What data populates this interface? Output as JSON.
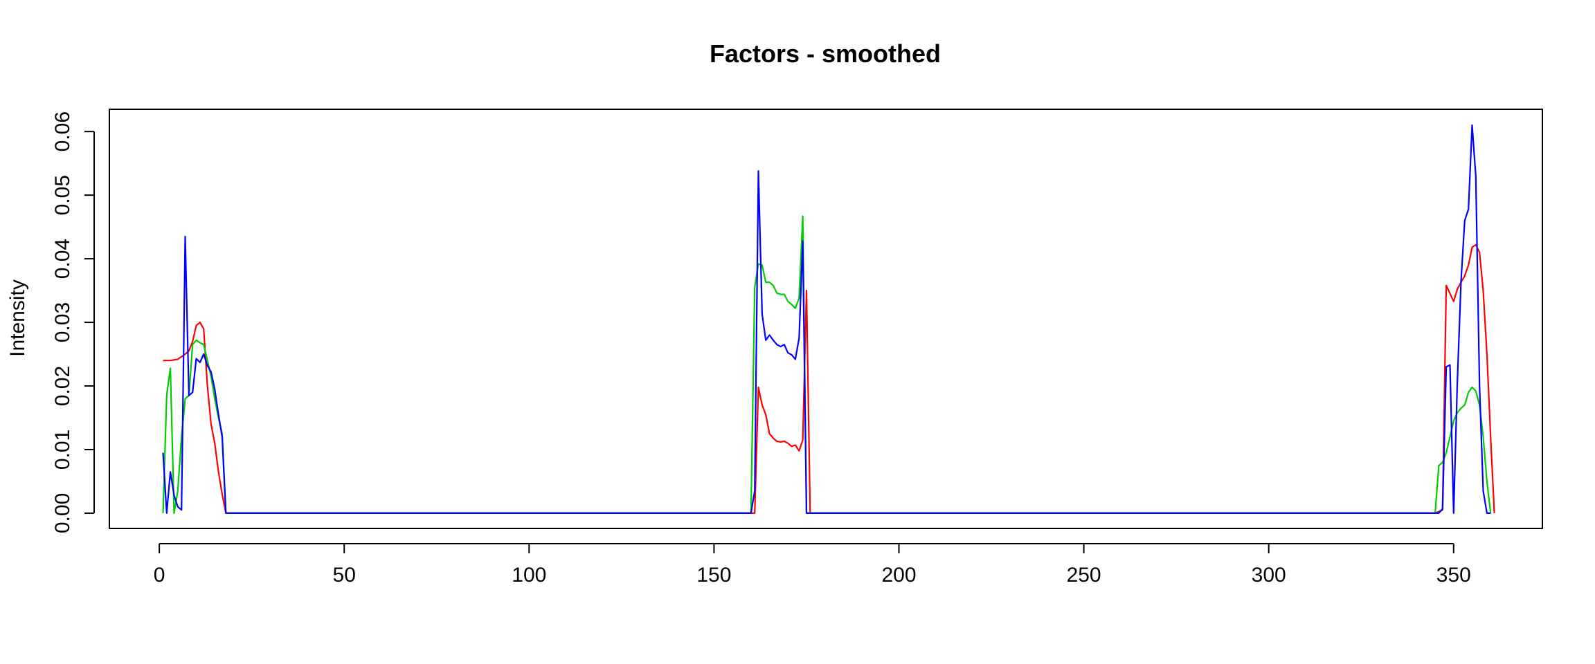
{
  "chart_data": {
    "type": "line",
    "title": "Factors - smoothed",
    "xlabel": "",
    "ylabel": "Intensity",
    "xlim": [
      -13.5,
      374
    ],
    "ylim": [
      -0.0024,
      0.0635
    ],
    "x_ticks": [
      0,
      50,
      100,
      150,
      200,
      250,
      300,
      350
    ],
    "x_tick_labels": [
      "0",
      "50",
      "100",
      "150",
      "200",
      "250",
      "300",
      "350"
    ],
    "y_ticks": [
      0.0,
      0.01,
      0.02,
      0.03,
      0.04,
      0.05,
      0.06
    ],
    "y_tick_labels": [
      "0.00",
      "0.01",
      "0.02",
      "0.03",
      "0.04",
      "0.05",
      "0.06"
    ],
    "grid": false,
    "legend": "none",
    "series": [
      {
        "color": "#ff0000",
        "points": [
          [
            1,
            0.024
          ],
          [
            3,
            0.024
          ],
          [
            5,
            0.0242
          ],
          [
            7,
            0.025
          ],
          [
            8,
            0.0255
          ],
          [
            9,
            0.027
          ],
          [
            10,
            0.0295
          ],
          [
            11,
            0.03
          ],
          [
            12,
            0.029
          ],
          [
            13,
            0.02
          ],
          [
            14,
            0.014
          ],
          [
            15,
            0.011
          ],
          [
            16,
            0.0065
          ],
          [
            17,
            0.003
          ],
          [
            18,
            0.0
          ],
          [
            30,
            0.0
          ],
          [
            160,
            0.0
          ],
          [
            161,
            0.0
          ],
          [
            162,
            0.0198
          ],
          [
            163,
            0.017
          ],
          [
            164,
            0.0155
          ],
          [
            165,
            0.0125
          ],
          [
            166,
            0.0118
          ],
          [
            167,
            0.0113
          ],
          [
            168,
            0.0112
          ],
          [
            169,
            0.0113
          ],
          [
            170,
            0.011
          ],
          [
            171,
            0.0105
          ],
          [
            172,
            0.0107
          ],
          [
            173,
            0.0098
          ],
          [
            174,
            0.0115
          ],
          [
            175,
            0.035
          ],
          [
            176,
            0.0
          ],
          [
            300,
            0.0
          ],
          [
            345,
            0.0
          ],
          [
            347,
            0.0005
          ],
          [
            348,
            0.0358
          ],
          [
            350,
            0.0333
          ],
          [
            351,
            0.0352
          ],
          [
            352,
            0.0363
          ],
          [
            353,
            0.0373
          ],
          [
            354,
            0.039
          ],
          [
            355,
            0.0418
          ],
          [
            356,
            0.0422
          ],
          [
            357,
            0.041
          ],
          [
            358,
            0.035
          ],
          [
            359,
            0.025
          ],
          [
            360,
            0.012
          ],
          [
            361,
            0.0
          ]
        ]
      },
      {
        "color": "#00cc00",
        "points": [
          [
            1,
            0.0
          ],
          [
            2,
            0.0185
          ],
          [
            3,
            0.0228
          ],
          [
            4,
            0.0
          ],
          [
            5,
            0.0035
          ],
          [
            6,
            0.012
          ],
          [
            7,
            0.018
          ],
          [
            8,
            0.0185
          ],
          [
            9,
            0.0265
          ],
          [
            10,
            0.0272
          ],
          [
            11,
            0.0268
          ],
          [
            12,
            0.0265
          ],
          [
            13,
            0.024
          ],
          [
            14,
            0.0215
          ],
          [
            15,
            0.018
          ],
          [
            16,
            0.015
          ],
          [
            17,
            0.0125
          ],
          [
            18,
            0.0
          ],
          [
            30,
            0.0
          ],
          [
            160,
            0.0
          ],
          [
            161,
            0.0355
          ],
          [
            162,
            0.0392
          ],
          [
            163,
            0.039
          ],
          [
            164,
            0.0363
          ],
          [
            165,
            0.0363
          ],
          [
            166,
            0.0358
          ],
          [
            167,
            0.0346
          ],
          [
            168,
            0.0344
          ],
          [
            169,
            0.0344
          ],
          [
            170,
            0.0333
          ],
          [
            171,
            0.0328
          ],
          [
            172,
            0.0322
          ],
          [
            173,
            0.0338
          ],
          [
            174,
            0.0467
          ],
          [
            175,
            0.0
          ],
          [
            300,
            0.0
          ],
          [
            345,
            0.0
          ],
          [
            346,
            0.0075
          ],
          [
            347,
            0.008
          ],
          [
            348,
            0.0095
          ],
          [
            349,
            0.012
          ],
          [
            350,
            0.0145
          ],
          [
            351,
            0.0158
          ],
          [
            352,
            0.0165
          ],
          [
            353,
            0.017
          ],
          [
            354,
            0.019
          ],
          [
            355,
            0.0198
          ],
          [
            356,
            0.0192
          ],
          [
            357,
            0.017
          ],
          [
            358,
            0.012
          ],
          [
            359,
            0.005
          ],
          [
            360,
            0.0
          ]
        ]
      },
      {
        "color": "#0000ff",
        "points": [
          [
            1,
            0.0095
          ],
          [
            2,
            0.0
          ],
          [
            3,
            0.0065
          ],
          [
            4,
            0.0028
          ],
          [
            5,
            0.001
          ],
          [
            6,
            0.0005
          ],
          [
            7,
            0.0435
          ],
          [
            8,
            0.0185
          ],
          [
            9,
            0.019
          ],
          [
            10,
            0.0243
          ],
          [
            11,
            0.0237
          ],
          [
            12,
            0.025
          ],
          [
            13,
            0.0232
          ],
          [
            14,
            0.0222
          ],
          [
            15,
            0.0195
          ],
          [
            16,
            0.0155
          ],
          [
            17,
            0.012
          ],
          [
            18,
            0.0
          ],
          [
            30,
            0.0
          ],
          [
            160,
            0.0
          ],
          [
            161,
            0.0035
          ],
          [
            162,
            0.0538
          ],
          [
            163,
            0.0313
          ],
          [
            164,
            0.0272
          ],
          [
            165,
            0.028
          ],
          [
            166,
            0.0272
          ],
          [
            167,
            0.0265
          ],
          [
            168,
            0.0262
          ],
          [
            169,
            0.0265
          ],
          [
            170,
            0.0252
          ],
          [
            171,
            0.0249
          ],
          [
            172,
            0.0242
          ],
          [
            173,
            0.0275
          ],
          [
            174,
            0.0428
          ],
          [
            175,
            0.0
          ],
          [
            300,
            0.0
          ],
          [
            345,
            0.0
          ],
          [
            346,
            0.0
          ],
          [
            347,
            0.0007
          ],
          [
            348,
            0.023
          ],
          [
            349,
            0.0233
          ],
          [
            350,
            0.0
          ],
          [
            351,
            0.0205
          ],
          [
            352,
            0.0365
          ],
          [
            353,
            0.046
          ],
          [
            354,
            0.0478
          ],
          [
            355,
            0.061
          ],
          [
            356,
            0.053
          ],
          [
            357,
            0.02
          ],
          [
            358,
            0.0035
          ],
          [
            359,
            0.0
          ],
          [
            360,
            0.0
          ]
        ]
      }
    ]
  }
}
